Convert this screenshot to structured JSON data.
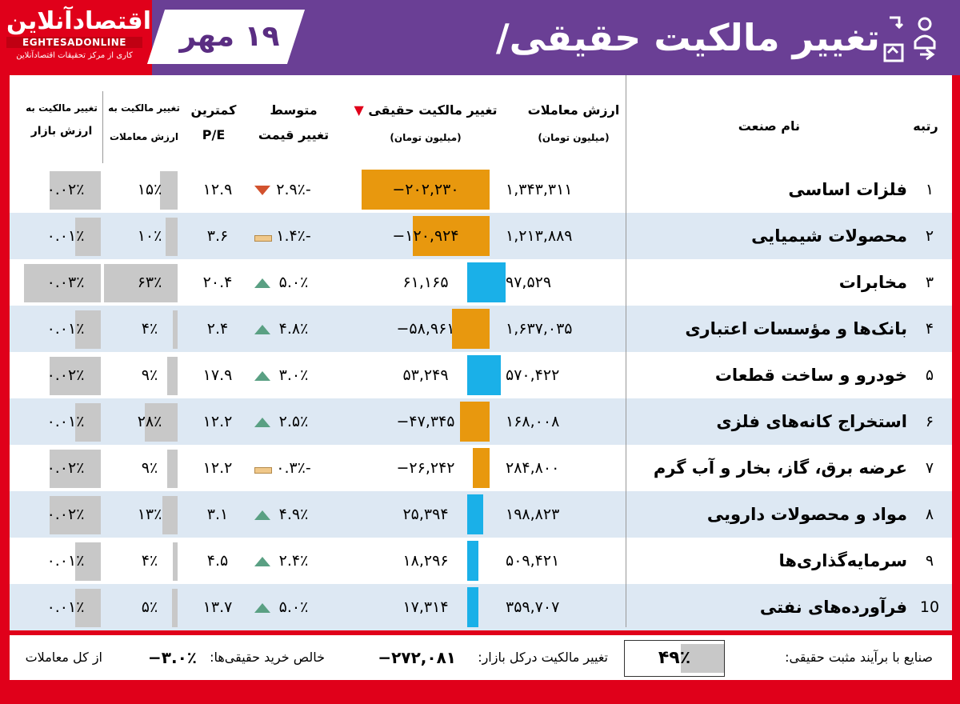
{
  "header": {
    "title": "تغییر مالکیت حقیقی/حقوقی",
    "date": "۱۹ مهر",
    "logo_fa": "اقتصادآنلاین",
    "logo_en": "EGHTESADONLINE",
    "logo_sub": "کاری از مرکز تحقیقات اقتصادآنلاین"
  },
  "columns": {
    "rank": "رتبه",
    "industry": "نام صنعت",
    "value_l1": "ارزش معاملات",
    "value_l2": "(میلیون تومان)",
    "change_l1": "تغییر مالکیت حقیقی",
    "change_l2": "(میلیون تومان)",
    "avg_l1": "متوسط",
    "avg_l2": "تغییر قیمت",
    "pe_l1": "کمترین",
    "pe_l2": "P/E",
    "vshare_l1": "تغییر مالکیت به",
    "vshare_l2": "ارزش معاملات",
    "mshare_l1": "تغییر مالکیت به",
    "mshare_l2": "ارزش بازار"
  },
  "rows": [
    {
      "rank": "۱",
      "name": "فلزات اساسی",
      "value": "۱,۳۴۳,۳۱۱",
      "change": "−۲۰۲,۲۳۰",
      "change_num": -202230,
      "avg": "-۲.۹٪",
      "trend": "down",
      "pe": "۱۲.۹",
      "vshare": "۱۵٪",
      "vshare_num": 15,
      "mshare": "۰.۰۲٪",
      "mshare_num": 0.02
    },
    {
      "rank": "۲",
      "name": "محصولات شیمیایی",
      "value": "۱,۲۱۳,۸۸۹",
      "change": "−۱۲۰,۹۲۴",
      "change_num": -120924,
      "avg": "-۱.۴٪",
      "trend": "flat",
      "pe": "۳.۶",
      "vshare": "۱۰٪",
      "vshare_num": 10,
      "mshare": "۰.۰۱٪",
      "mshare_num": 0.01
    },
    {
      "rank": "۳",
      "name": "مخابرات",
      "value": "۹۷,۵۲۹",
      "change": "۶۱,۱۶۵",
      "change_num": 61165,
      "avg": "۵.۰٪",
      "trend": "up",
      "pe": "۲۰.۴",
      "vshare": "۶۳٪",
      "vshare_num": 63,
      "mshare": "۰.۰۳٪",
      "mshare_num": 0.03
    },
    {
      "rank": "۴",
      "name": "بانک‌ها و مؤسسات اعتباری",
      "value": "۱,۶۳۷,۰۳۵",
      "change": "−۵۸,۹۶۱",
      "change_num": -58961,
      "avg": "۴.۸٪",
      "trend": "up",
      "pe": "۲.۴",
      "vshare": "۴٪",
      "vshare_num": 4,
      "mshare": "۰.۰۱٪",
      "mshare_num": 0.01
    },
    {
      "rank": "۵",
      "name": "خودرو و ساخت قطعات",
      "value": "۵۷۰,۴۲۲",
      "change": "۵۳,۲۴۹",
      "change_num": 53249,
      "avg": "۳.۰٪",
      "trend": "up",
      "pe": "۱۷.۹",
      "vshare": "۹٪",
      "vshare_num": 9,
      "mshare": "۰.۰۲٪",
      "mshare_num": 0.02
    },
    {
      "rank": "۶",
      "name": "استخراج کانه‌های فلزی",
      "value": "۱۶۸,۰۰۸",
      "change": "−۴۷,۳۴۵",
      "change_num": -47345,
      "avg": "۲.۵٪",
      "trend": "up",
      "pe": "۱۲.۲",
      "vshare": "۲۸٪",
      "vshare_num": 28,
      "mshare": "۰.۰۱٪",
      "mshare_num": 0.01
    },
    {
      "rank": "۷",
      "name": "عرضه برق، گاز، بخار و آب گرم",
      "value": "۲۸۴,۸۰۰",
      "change": "−۲۶,۲۴۲",
      "change_num": -26242,
      "avg": "-۰.۳٪",
      "trend": "flat",
      "pe": "۱۲.۲",
      "vshare": "۹٪",
      "vshare_num": 9,
      "mshare": "۰.۰۲٪",
      "mshare_num": 0.02
    },
    {
      "rank": "۸",
      "name": "مواد و محصولات دارویی",
      "value": "۱۹۸,۸۲۳",
      "change": "۲۵,۳۹۴",
      "change_num": 25394,
      "avg": "۴.۹٪",
      "trend": "up",
      "pe": "۳.۱",
      "vshare": "۱۳٪",
      "vshare_num": 13,
      "mshare": "۰.۰۲٪",
      "mshare_num": 0.02
    },
    {
      "rank": "۹",
      "name": "سرمایه‌گذاری‌ها",
      "value": "۵۰۹,۴۲۱",
      "change": "۱۸,۲۹۶",
      "change_num": 18296,
      "avg": "۲.۴٪",
      "trend": "up",
      "pe": "۴.۵",
      "vshare": "۴٪",
      "vshare_num": 4,
      "mshare": "۰.۰۱٪",
      "mshare_num": 0.01
    },
    {
      "rank": "10",
      "name": "فرآورده‌های نفتی",
      "value": "۳۵۹,۷۰۷",
      "change": "۱۷,۳۱۴",
      "change_num": 17314,
      "avg": "۵.۰٪",
      "trend": "up",
      "pe": "۱۳.۷",
      "vshare": "۵٪",
      "vshare_num": 5,
      "mshare": "۰.۰۱٪",
      "mshare_num": 0.01
    }
  ],
  "footer": {
    "positive_label": "صنایع با برآیند مثبت حقیقی:",
    "positive_value": "۴۹٪",
    "market_label": "تغییر مالکیت درکل بازار:",
    "market_value": "−۲۷۲,۰۸۱",
    "net_label": "خالص خرید حقیقی‌ها:",
    "net_value": "−۳.۰٪",
    "net_suffix": "از کل معاملات"
  },
  "colors": {
    "frame": "#e0001a",
    "header": "#6a3f95",
    "negative_bar": "#e8980e",
    "positive_bar": "#1ab0e8",
    "share_bar": "#c8c8c8"
  }
}
